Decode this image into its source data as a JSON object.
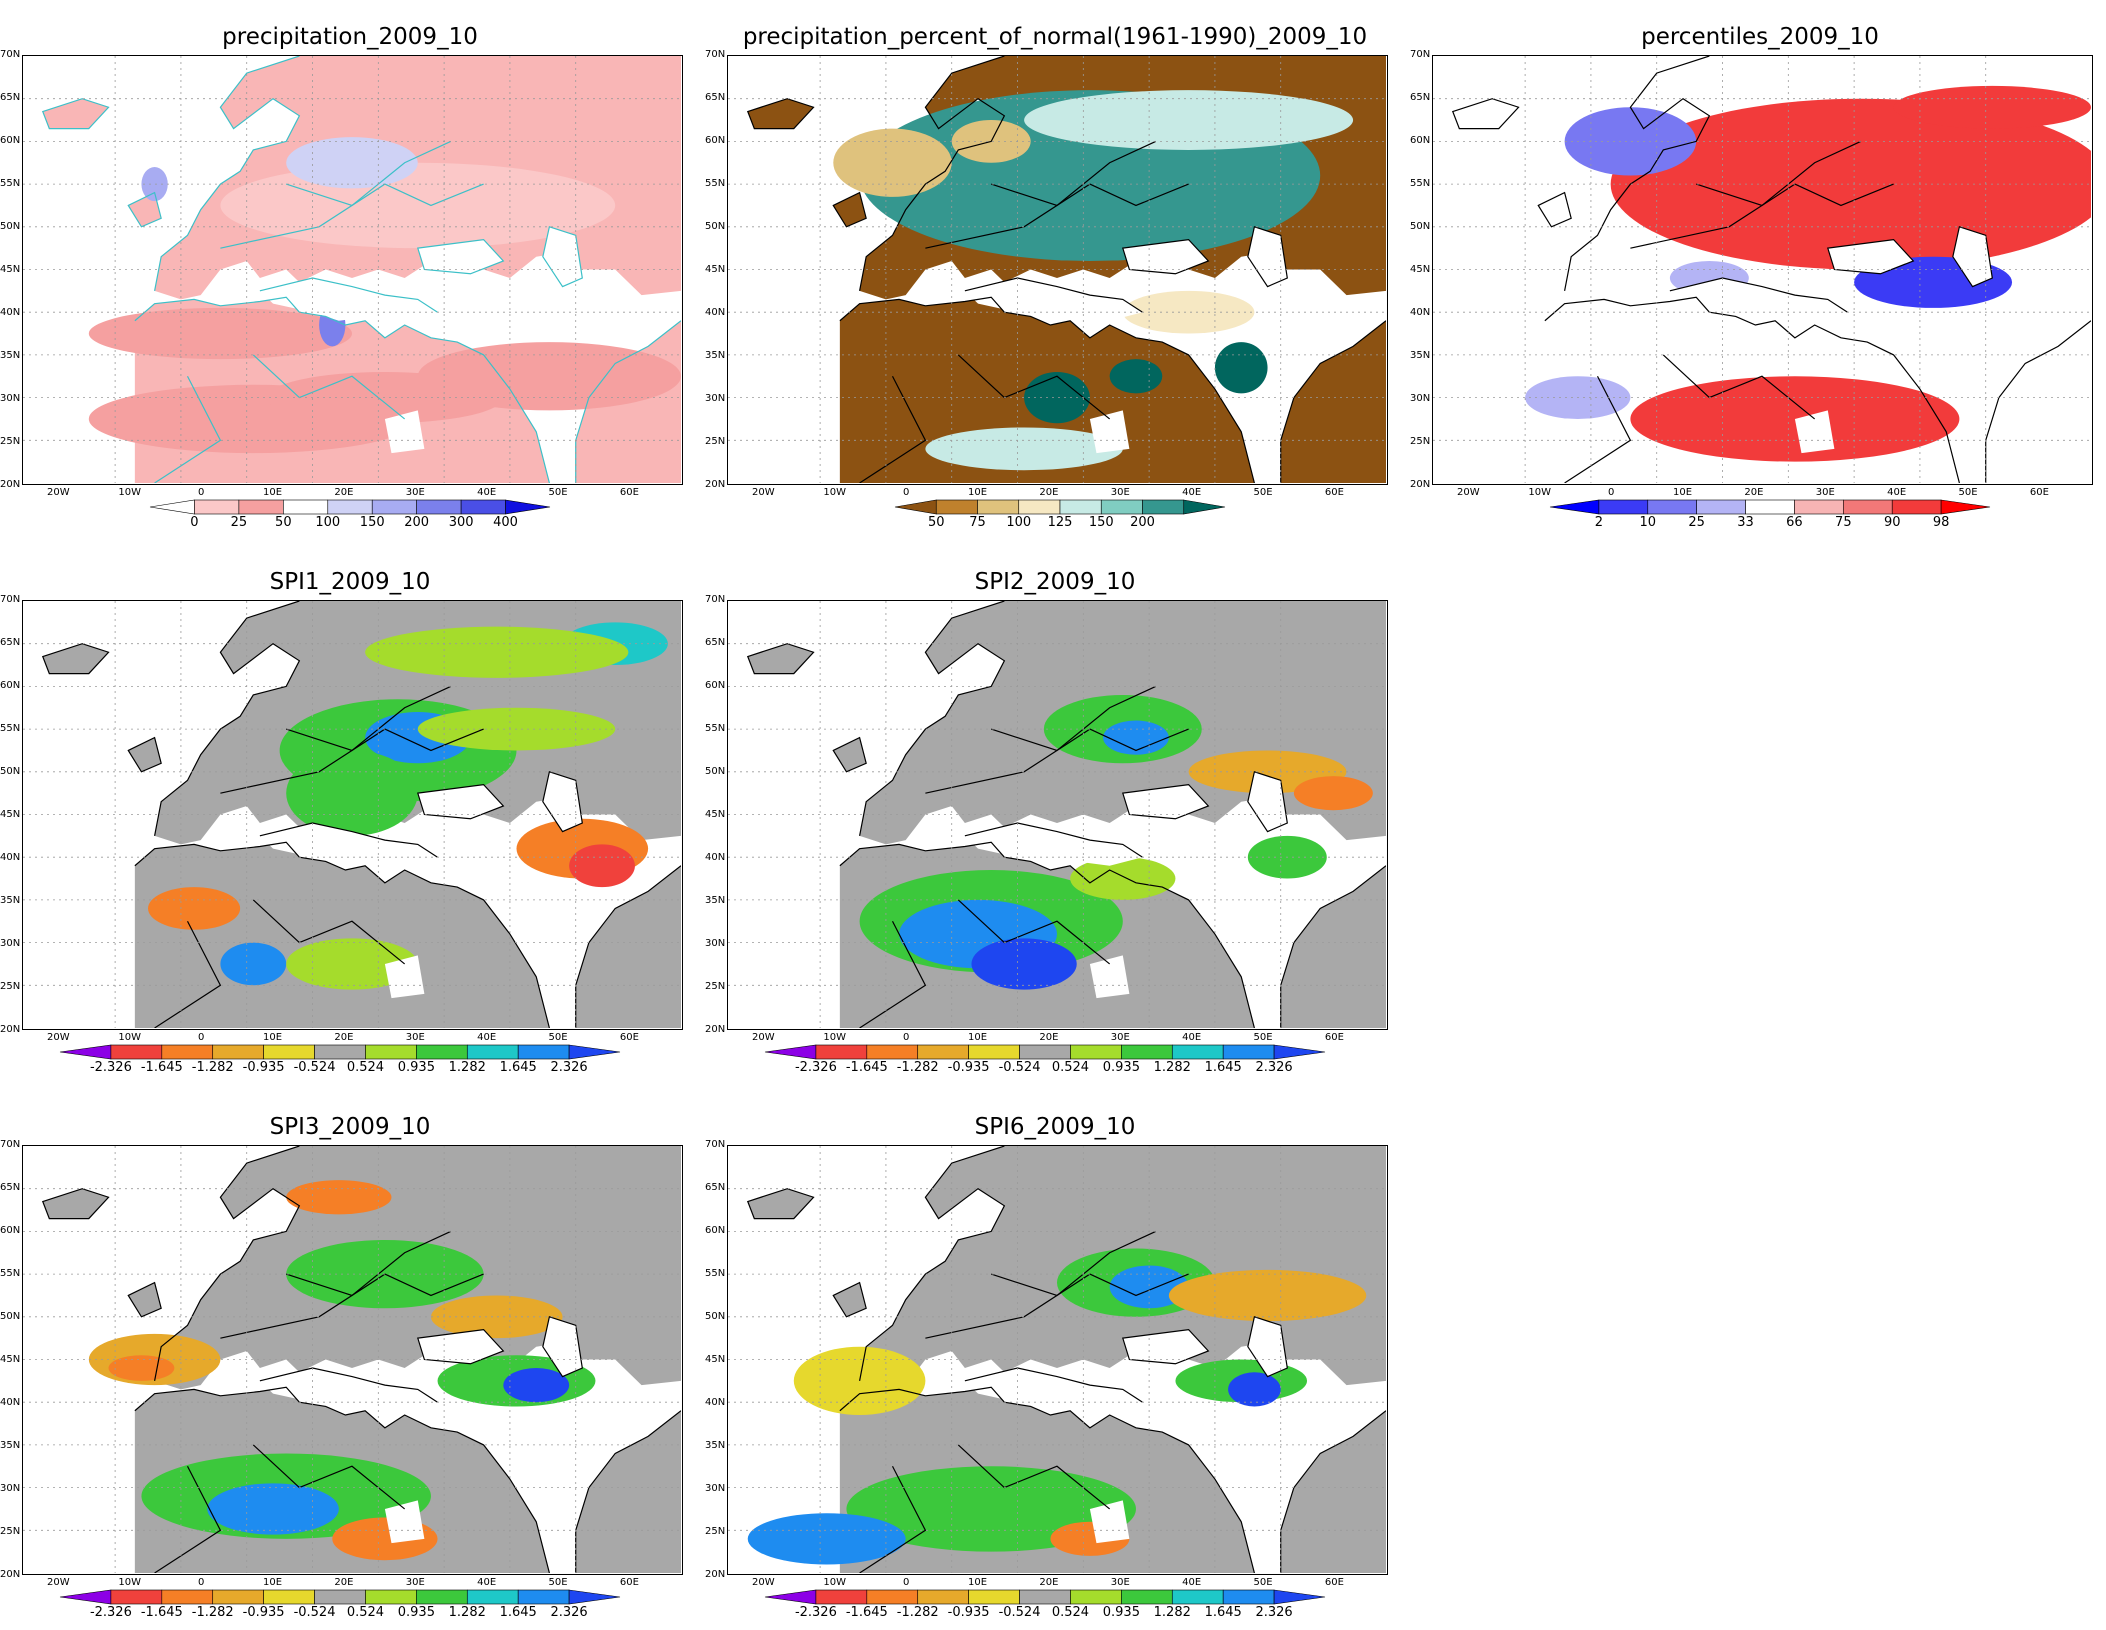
{
  "axes": {
    "lat_labels": [
      "70N",
      "65N",
      "60N",
      "55N",
      "50N",
      "45N",
      "40N",
      "35N",
      "30N",
      "25N",
      "20N"
    ],
    "lon_labels": [
      "20W",
      "10W",
      "0",
      "10E",
      "20E",
      "30E",
      "40E",
      "50E",
      "60E"
    ]
  },
  "panels": [
    {
      "id": "precip",
      "title": "precipitation_2009_10",
      "type": "contour-map",
      "base_color": "#f9b6b6",
      "coast_color": "#3cc0c8",
      "colors": [
        "#ffffff",
        "#fbc8c8",
        "#f5a0a0",
        "#ffffff",
        "#cfd2f5",
        "#a8acf2",
        "#7b80ec",
        "#4a4fe6",
        "#1010e0"
      ],
      "labels": [
        "0",
        "25",
        "50",
        "100",
        "150",
        "200",
        "300",
        "400"
      ]
    },
    {
      "id": "pct-normal",
      "title": "precipitation_percent_of_normal(1961-1990)_2009_10",
      "type": "contour-map",
      "base_color": "#8c5212",
      "coast_color": "#000000",
      "colors": [
        "#8c5212",
        "#bf812d",
        "#dfc27d",
        "#f6e8c3",
        "#c7eae5",
        "#80cdc1",
        "#35978f",
        "#01665e"
      ],
      "labels": [
        "50",
        "75",
        "100",
        "125",
        "150",
        "200"
      ]
    },
    {
      "id": "percentiles",
      "title": "percentiles_2009_10",
      "type": "contour-map",
      "base_color": "#ffffff",
      "coast_color": "#000000",
      "colors": [
        "#0000ff",
        "#3b3bf5",
        "#7878f2",
        "#b4b4f5",
        "#ffffff",
        "#f7b4b4",
        "#f27878",
        "#f23b3b",
        "#ff0000"
      ],
      "labels": [
        "2",
        "10",
        "25",
        "33",
        "66",
        "75",
        "90",
        "98"
      ]
    },
    {
      "id": "spi1",
      "title": "SPI1_2009_10",
      "type": "contour-map",
      "base_color": "#a8a8a8",
      "coast_color": "#000000",
      "colors": [
        "#8c00e6",
        "#f0413c",
        "#f57f26",
        "#e6a92b",
        "#e6d82d",
        "#a8a8a8",
        "#a5dc2c",
        "#3cc83c",
        "#1ec8c8",
        "#1e8cf0",
        "#1e46f0"
      ],
      "labels": [
        "-2.326",
        "-1.645",
        "-1.282",
        "-0.935",
        "-0.524",
        "0.524",
        "0.935",
        "1.282",
        "1.645",
        "2.326"
      ]
    },
    {
      "id": "spi2",
      "title": "SPI2_2009_10",
      "type": "contour-map",
      "base_color": "#a8a8a8",
      "coast_color": "#000000",
      "colors": [
        "#8c00e6",
        "#f0413c",
        "#f57f26",
        "#e6a92b",
        "#e6d82d",
        "#a8a8a8",
        "#a5dc2c",
        "#3cc83c",
        "#1ec8c8",
        "#1e8cf0",
        "#1e46f0"
      ],
      "labels": [
        "-2.326",
        "-1.645",
        "-1.282",
        "-0.935",
        "-0.524",
        "0.524",
        "0.935",
        "1.282",
        "1.645",
        "2.326"
      ]
    },
    {
      "id": "spi3",
      "title": "SPI3_2009_10",
      "type": "contour-map",
      "base_color": "#a8a8a8",
      "coast_color": "#000000",
      "colors": [
        "#8c00e6",
        "#f0413c",
        "#f57f26",
        "#e6a92b",
        "#e6d82d",
        "#a8a8a8",
        "#a5dc2c",
        "#3cc83c",
        "#1ec8c8",
        "#1e8cf0",
        "#1e46f0"
      ],
      "labels": [
        "-2.326",
        "-1.645",
        "-1.282",
        "-0.935",
        "-0.524",
        "0.524",
        "0.935",
        "1.282",
        "1.645",
        "2.326"
      ]
    },
    {
      "id": "spi6",
      "title": "SPI6_2009_10",
      "type": "contour-map",
      "base_color": "#a8a8a8",
      "coast_color": "#000000",
      "colors": [
        "#8c00e6",
        "#f0413c",
        "#f57f26",
        "#e6a92b",
        "#e6d82d",
        "#a8a8a8",
        "#a5dc2c",
        "#3cc83c",
        "#1ec8c8",
        "#1e8cf0",
        "#1e46f0"
      ],
      "labels": [
        "-2.326",
        "-1.645",
        "-1.282",
        "-0.935",
        "-0.524",
        "0.524",
        "0.935",
        "1.282",
        "1.645",
        "2.326"
      ]
    }
  ]
}
